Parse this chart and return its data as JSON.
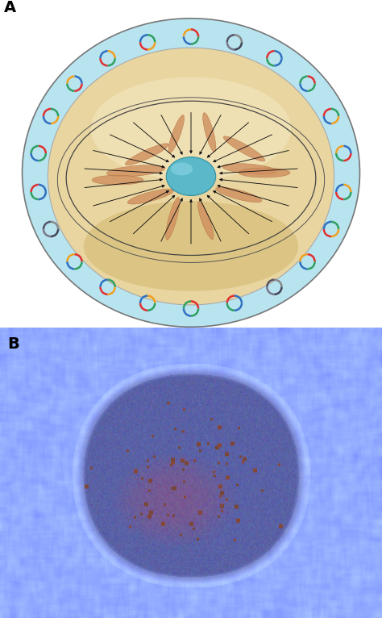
{
  "panel_A_label": "A",
  "panel_B_label": "B",
  "dish_outer_color": "#b8e4f0",
  "dish_rim_color": "#c8ecf5",
  "dish_inner_color": "#e8d5a0",
  "dish_gradient_top": "#f0e8c8",
  "dish_gradient_bot": "#d0b870",
  "dish_center_color": "#5ab8c8",
  "dish_center_light": "#90d8e8",
  "arrow_color": "#111111",
  "fibroblast_color": "#d09060",
  "fibroblast_edge": "#b07040",
  "orbit_color": "#555555",
  "label_fontsize": 14,
  "label_fontweight": "bold",
  "bg_color": "#ffffff",
  "ring_patterns": [
    [
      "#e03030",
      "#30a060",
      "#3070c0",
      "#30a060"
    ],
    [
      "#3070c0",
      "#e03030",
      "#30a060",
      "#3070c0"
    ],
    [
      "#888888",
      "#555566",
      "#777788",
      "#444455"
    ],
    [
      "#e03030",
      "#f0a020",
      "#3070c0",
      "#30a060"
    ],
    [
      "#30a060",
      "#3070c0",
      "#e03030",
      "#f0a020"
    ],
    [
      "#f0a020",
      "#3070c0",
      "#e03030",
      "#30a060"
    ],
    [
      "#3070c0",
      "#f0a020",
      "#30a060",
      "#e03030"
    ],
    [
      "#30a060",
      "#e03030",
      "#3070c0",
      "#f0a020"
    ]
  ]
}
